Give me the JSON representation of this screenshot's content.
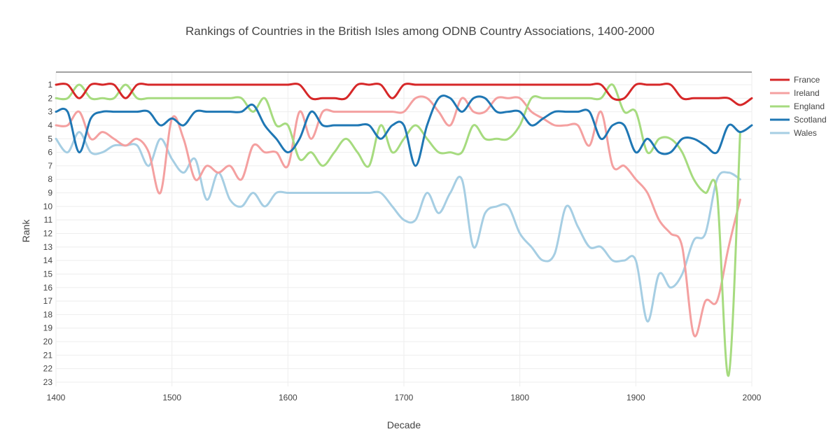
{
  "chart_data": {
    "type": "line",
    "title": "Rankings of Countries in the British Isles among ODNB Country Associations, 1400-2000",
    "xlabel": "Decade",
    "ylabel": "Rank",
    "xlim": [
      1400,
      2000
    ],
    "ylim": [
      23,
      1
    ],
    "x_ticks": [
      1400,
      1500,
      1600,
      1700,
      1800,
      1900,
      2000
    ],
    "y_ticks": [
      1,
      2,
      3,
      4,
      5,
      6,
      7,
      8,
      9,
      10,
      11,
      12,
      13,
      14,
      15,
      16,
      17,
      18,
      19,
      20,
      21,
      22,
      23
    ],
    "y_reversed": true,
    "grid": true,
    "legend_position": "top-right",
    "series": [
      {
        "name": "France",
        "color": "#d62728",
        "x": [
          1400,
          1410,
          1420,
          1430,
          1440,
          1450,
          1460,
          1470,
          1480,
          1490,
          1500,
          1510,
          1520,
          1530,
          1540,
          1550,
          1560,
          1570,
          1580,
          1590,
          1600,
          1610,
          1620,
          1630,
          1640,
          1650,
          1660,
          1670,
          1680,
          1690,
          1700,
          1710,
          1720,
          1730,
          1740,
          1750,
          1760,
          1770,
          1780,
          1790,
          1800,
          1810,
          1820,
          1830,
          1840,
          1850,
          1860,
          1870,
          1880,
          1890,
          1900,
          1910,
          1920,
          1930,
          1940,
          1950,
          1960,
          1970,
          1980,
          1990,
          2000
        ],
        "values": [
          1,
          1,
          2,
          1,
          1,
          1,
          2,
          1,
          1,
          1,
          1,
          1,
          1,
          1,
          1,
          1,
          1,
          1,
          1,
          1,
          1,
          1,
          2,
          2,
          2,
          2,
          1,
          1,
          1,
          2,
          1,
          1,
          1,
          1,
          1,
          1,
          1,
          1,
          1,
          1,
          1,
          1,
          1,
          1,
          1,
          1,
          1,
          1,
          2,
          2,
          1,
          1,
          1,
          1,
          2,
          2,
          2,
          2,
          2,
          2.5,
          2
        ]
      },
      {
        "name": "Ireland",
        "color": "#f4a0a0",
        "x": [
          1400,
          1410,
          1420,
          1430,
          1440,
          1450,
          1460,
          1470,
          1480,
          1490,
          1500,
          1510,
          1520,
          1530,
          1540,
          1550,
          1560,
          1570,
          1580,
          1590,
          1600,
          1610,
          1620,
          1630,
          1640,
          1650,
          1660,
          1670,
          1680,
          1690,
          1700,
          1710,
          1720,
          1730,
          1740,
          1750,
          1760,
          1770,
          1780,
          1790,
          1800,
          1810,
          1820,
          1830,
          1840,
          1850,
          1860,
          1870,
          1880,
          1890,
          1900,
          1910,
          1920,
          1930,
          1940,
          1950,
          1960,
          1970,
          1980,
          1990
        ],
        "values": [
          4,
          4,
          3,
          5,
          4.5,
          5,
          5.5,
          5,
          6,
          9,
          3.5,
          5,
          8,
          7,
          7.5,
          7,
          8,
          5.5,
          6,
          6,
          7,
          3,
          5,
          3,
          3,
          3,
          3,
          3,
          3,
          3,
          3,
          2,
          2,
          3,
          4,
          2,
          3,
          3,
          2,
          2,
          2,
          3,
          3.5,
          4,
          4,
          4,
          5.5,
          3,
          7,
          7,
          8,
          9,
          11,
          12,
          13,
          19.5,
          17,
          17,
          13,
          9.5
        ]
      },
      {
        "name": "England",
        "color": "#a6db7f",
        "x": [
          1400,
          1410,
          1420,
          1430,
          1440,
          1450,
          1460,
          1470,
          1480,
          1490,
          1500,
          1510,
          1520,
          1530,
          1540,
          1550,
          1560,
          1570,
          1580,
          1590,
          1600,
          1610,
          1620,
          1630,
          1640,
          1650,
          1660,
          1670,
          1680,
          1690,
          1700,
          1710,
          1720,
          1730,
          1740,
          1750,
          1760,
          1770,
          1780,
          1790,
          1800,
          1810,
          1820,
          1830,
          1840,
          1850,
          1860,
          1870,
          1880,
          1890,
          1900,
          1910,
          1920,
          1930,
          1940,
          1950,
          1960,
          1970,
          1980,
          1990
        ],
        "values": [
          2,
          2,
          1,
          2,
          2,
          2,
          1,
          2,
          2,
          2,
          2,
          2,
          2,
          2,
          2,
          2,
          2,
          3,
          2,
          4,
          4,
          6.5,
          6,
          7,
          6,
          5,
          6,
          7,
          4,
          6,
          5,
          4,
          5,
          6,
          6,
          6,
          4,
          5,
          5,
          5,
          4,
          2,
          2,
          2,
          2,
          2,
          2,
          2,
          1,
          3,
          3,
          6,
          5,
          5,
          6,
          8,
          9,
          9,
          22.5,
          4.5
        ]
      },
      {
        "name": "Scotland",
        "color": "#1f77b4",
        "x": [
          1400,
          1410,
          1420,
          1430,
          1440,
          1450,
          1460,
          1470,
          1480,
          1490,
          1500,
          1510,
          1520,
          1530,
          1540,
          1550,
          1560,
          1570,
          1580,
          1590,
          1600,
          1610,
          1620,
          1630,
          1640,
          1650,
          1660,
          1670,
          1680,
          1690,
          1700,
          1710,
          1720,
          1730,
          1740,
          1750,
          1760,
          1770,
          1780,
          1790,
          1800,
          1810,
          1820,
          1830,
          1840,
          1850,
          1860,
          1870,
          1880,
          1890,
          1900,
          1910,
          1920,
          1930,
          1940,
          1950,
          1960,
          1970,
          1980,
          1990,
          2000
        ],
        "values": [
          3,
          3,
          6,
          3.5,
          3,
          3,
          3,
          3,
          3,
          4,
          3.5,
          4,
          3,
          3,
          3,
          3,
          3,
          2.5,
          4,
          5,
          6,
          5,
          3,
          4,
          4,
          4,
          4,
          4,
          5,
          4,
          4,
          7,
          4,
          2,
          2,
          3,
          2,
          2,
          3,
          3,
          3,
          4,
          3.5,
          3,
          3,
          3,
          3,
          5,
          4,
          4,
          6,
          5,
          6,
          6,
          5,
          5,
          5.5,
          6,
          4,
          4.5,
          4
        ]
      },
      {
        "name": "Wales",
        "color": "#a6cee3",
        "x": [
          1400,
          1410,
          1420,
          1430,
          1440,
          1450,
          1460,
          1470,
          1480,
          1490,
          1500,
          1510,
          1520,
          1530,
          1540,
          1550,
          1560,
          1570,
          1580,
          1590,
          1600,
          1610,
          1620,
          1630,
          1640,
          1650,
          1660,
          1670,
          1680,
          1690,
          1700,
          1710,
          1720,
          1730,
          1740,
          1750,
          1760,
          1770,
          1780,
          1790,
          1800,
          1810,
          1820,
          1830,
          1840,
          1850,
          1860,
          1870,
          1880,
          1890,
          1900,
          1910,
          1920,
          1930,
          1940,
          1950,
          1960,
          1970,
          1980,
          1990
        ],
        "values": [
          5,
          6,
          4.5,
          6,
          6,
          5.5,
          5.5,
          5.5,
          7,
          5,
          6.5,
          7.5,
          6.5,
          9.5,
          7.5,
          9.5,
          10,
          9,
          10,
          9,
          9,
          9,
          9,
          9,
          9,
          9,
          9,
          9,
          9,
          10,
          11,
          11,
          9,
          10.5,
          9,
          8,
          13,
          10.5,
          10,
          10,
          12,
          13,
          14,
          13.5,
          10,
          11.5,
          13,
          13,
          14,
          14,
          14,
          18.5,
          15,
          16,
          15,
          12.5,
          12,
          8,
          7.5,
          8
        ]
      }
    ]
  }
}
